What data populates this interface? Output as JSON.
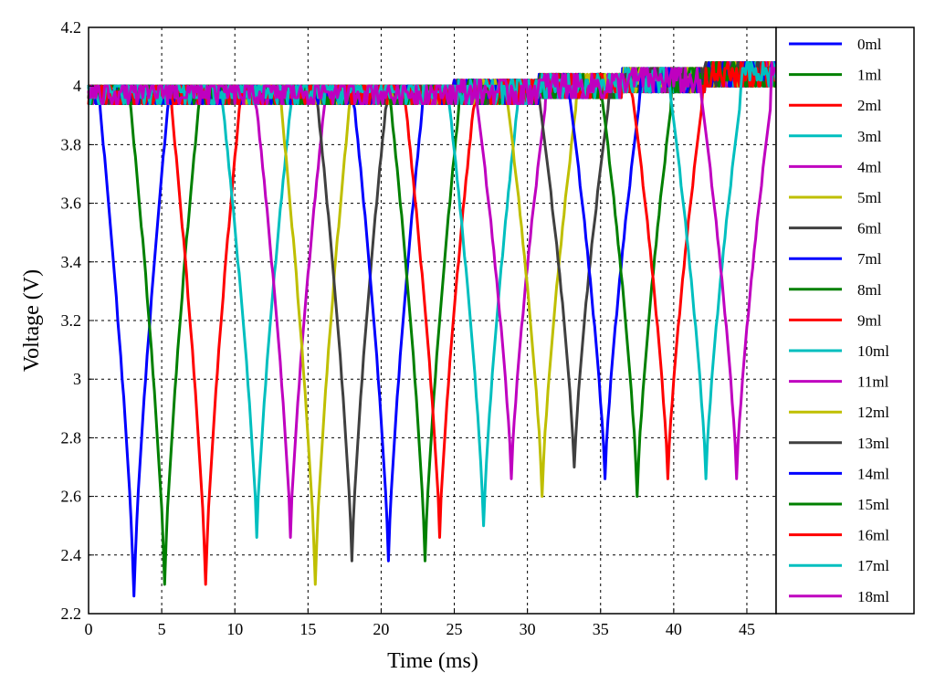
{
  "chart_data": {
    "type": "line",
    "title": "",
    "xlabel": "Time (ms)",
    "ylabel": "Voltage (V)",
    "xlim": [
      0,
      47
    ],
    "ylim": [
      2.2,
      4.2
    ],
    "xticks": [
      0,
      5,
      10,
      15,
      20,
      25,
      30,
      35,
      40,
      45
    ],
    "yticks": [
      2.2,
      2.4,
      2.6,
      2.8,
      3,
      3.2,
      3.4,
      3.6,
      3.8,
      4,
      4.2
    ],
    "xtick_labels": [
      "0",
      "5",
      "10",
      "15",
      "20",
      "25",
      "30",
      "35",
      "40",
      "45"
    ],
    "ytick_labels": [
      "2.2",
      "2.4",
      "2.6",
      "2.8",
      "3",
      "3.2",
      "3.4",
      "3.6",
      "3.8",
      "4",
      "4.2"
    ],
    "grid": true,
    "legend_position": "right",
    "baseline_voltage": 3.97,
    "series": [
      {
        "name": "0ml",
        "color": "#0000ff",
        "dip_time": 3.1,
        "dip_voltage": 2.25
      },
      {
        "name": "1ml",
        "color": "#008000",
        "dip_time": 5.2,
        "dip_voltage": 2.29
      },
      {
        "name": "2ml",
        "color": "#ff0000",
        "dip_time": 8.0,
        "dip_voltage": 2.29
      },
      {
        "name": "3ml",
        "color": "#00bfbf",
        "dip_time": 11.5,
        "dip_voltage": 2.45
      },
      {
        "name": "4ml",
        "color": "#bf00bf",
        "dip_time": 13.8,
        "dip_voltage": 2.45
      },
      {
        "name": "5ml",
        "color": "#bfbf00",
        "dip_time": 15.5,
        "dip_voltage": 2.29
      },
      {
        "name": "6ml",
        "color": "#404040",
        "dip_time": 18.0,
        "dip_voltage": 2.37
      },
      {
        "name": "7ml",
        "color": "#0000ff",
        "dip_time": 20.5,
        "dip_voltage": 2.37
      },
      {
        "name": "8ml",
        "color": "#008000",
        "dip_time": 23.0,
        "dip_voltage": 2.37
      },
      {
        "name": "9ml",
        "color": "#ff0000",
        "dip_time": 24.0,
        "dip_voltage": 2.45
      },
      {
        "name": "10ml",
        "color": "#00bfbf",
        "dip_time": 27.0,
        "dip_voltage": 2.49
      },
      {
        "name": "11ml",
        "color": "#bf00bf",
        "dip_time": 28.9,
        "dip_voltage": 2.65
      },
      {
        "name": "12ml",
        "color": "#bfbf00",
        "dip_time": 31.0,
        "dip_voltage": 2.6
      },
      {
        "name": "13ml",
        "color": "#404040",
        "dip_time": 33.2,
        "dip_voltage": 2.69
      },
      {
        "name": "14ml",
        "color": "#0000ff",
        "dip_time": 35.3,
        "dip_voltage": 2.65
      },
      {
        "name": "15ml",
        "color": "#008000",
        "dip_time": 37.5,
        "dip_voltage": 2.6
      },
      {
        "name": "16ml",
        "color": "#ff0000",
        "dip_time": 39.6,
        "dip_voltage": 2.65
      },
      {
        "name": "17ml",
        "color": "#00bfbf",
        "dip_time": 42.2,
        "dip_voltage": 2.65
      },
      {
        "name": "18ml",
        "color": "#bf00bf",
        "dip_time": 44.3,
        "dip_voltage": 2.65
      }
    ]
  }
}
